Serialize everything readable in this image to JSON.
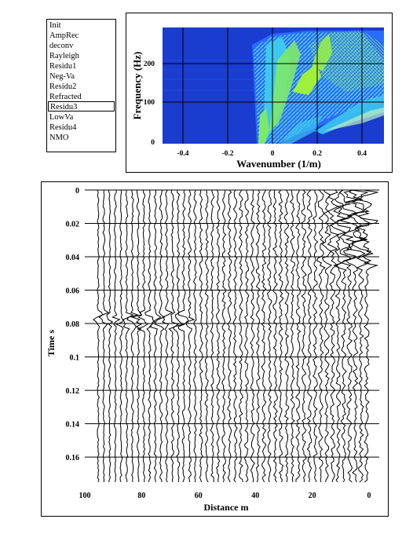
{
  "process_list": {
    "items": [
      "Init",
      "AmpRec",
      "deconv",
      "Rayleigh",
      "Residu1",
      "Neg-Va",
      "Residu2",
      "Refracted",
      "Residu3",
      "LowVa",
      "Residu4",
      "NMO"
    ],
    "selected_index": 8
  },
  "fk_plot": {
    "xlabel": "Wavenumber (1/m)",
    "ylabel": "Frequency (Hz)",
    "x_ticks": [
      "-0.4",
      "-0.2",
      "0",
      "0.2",
      "0.4"
    ],
    "y_ticks": [
      "200",
      "100",
      "0"
    ],
    "colors": {
      "background": "#1a3ccf",
      "low": "#2a6cff",
      "mid": "#3cc8f0",
      "high": "#9ef03c"
    }
  },
  "seismogram": {
    "xlabel": "Distance m",
    "ylabel": "Time s",
    "x_ticks": [
      "100",
      "80",
      "60",
      "40",
      "20",
      "0"
    ],
    "y_ticks": [
      "0",
      "0.02",
      "0.04",
      "0.06",
      "0.08",
      "0.1",
      "0.12",
      "0.14",
      "0.16"
    ],
    "trace_count": 48
  }
}
